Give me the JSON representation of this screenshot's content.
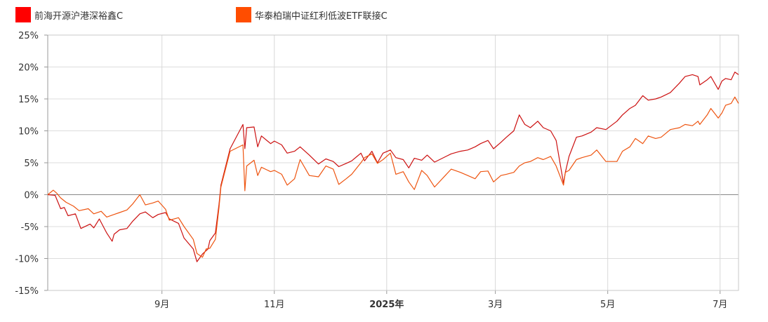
{
  "chart_data": {
    "type": "line",
    "ylim": [
      -15,
      25
    ],
    "y_ticks": [
      25,
      20,
      15,
      10,
      5,
      0,
      -5,
      -10,
      -15
    ],
    "y_tick_suffix": "%",
    "x_range": [
      "2024-07-01",
      "2025-07-11"
    ],
    "x_ticks": [
      {
        "date": "2024-09-01",
        "label": "9月",
        "bold": false
      },
      {
        "date": "2024-11-01",
        "label": "11月",
        "bold": false
      },
      {
        "date": "2025-01-01",
        "label": "2025年",
        "bold": true
      },
      {
        "date": "2025-03-01",
        "label": "3月",
        "bold": false
      },
      {
        "date": "2025-05-01",
        "label": "5月",
        "bold": false
      },
      {
        "date": "2025-07-01",
        "label": "7月",
        "bold": false
      }
    ],
    "grid": true,
    "legend_position": "top-left",
    "series": [
      {
        "name": "前海开源沪港深裕鑫C",
        "color": "#cc1111",
        "points": [
          [
            "2024-07-01",
            0
          ],
          [
            "2024-07-05",
            -0.1
          ],
          [
            "2024-07-08",
            -2.2
          ],
          [
            "2024-07-10",
            -2.0
          ],
          [
            "2024-07-12",
            -3.3
          ],
          [
            "2024-07-16",
            -3.0
          ],
          [
            "2024-07-19",
            -5.3
          ],
          [
            "2024-07-24",
            -4.6
          ],
          [
            "2024-07-26",
            -5.2
          ],
          [
            "2024-07-29",
            -3.8
          ],
          [
            "2024-08-02",
            -6.0
          ],
          [
            "2024-08-05",
            -7.3
          ],
          [
            "2024-08-06",
            -6.2
          ],
          [
            "2024-08-09",
            -5.5
          ],
          [
            "2024-08-13",
            -5.3
          ],
          [
            "2024-08-16",
            -4.2
          ],
          [
            "2024-08-20",
            -3.0
          ],
          [
            "2024-08-23",
            -2.7
          ],
          [
            "2024-08-27",
            -3.6
          ],
          [
            "2024-08-30",
            -3.1
          ],
          [
            "2024-09-03",
            -2.8
          ],
          [
            "2024-09-05",
            -3.8
          ],
          [
            "2024-09-10",
            -4.5
          ],
          [
            "2024-09-13",
            -6.8
          ],
          [
            "2024-09-18",
            -8.5
          ],
          [
            "2024-09-20",
            -10.5
          ],
          [
            "2024-09-23",
            -9.3
          ],
          [
            "2024-09-26",
            -8.5
          ],
          [
            "2024-09-27",
            -7.2
          ],
          [
            "2024-09-30",
            -6.0
          ],
          [
            "2024-10-02",
            -1.5
          ],
          [
            "2024-10-03",
            1.5
          ],
          [
            "2024-10-08",
            7.2
          ],
          [
            "2024-10-15",
            11.0
          ],
          [
            "2024-10-16",
            7.2
          ],
          [
            "2024-10-17",
            10.5
          ],
          [
            "2024-10-21",
            10.6
          ],
          [
            "2024-10-23",
            7.5
          ],
          [
            "2024-10-25",
            9.2
          ],
          [
            "2024-10-30",
            8.0
          ],
          [
            "2024-11-01",
            8.4
          ],
          [
            "2024-11-05",
            7.8
          ],
          [
            "2024-11-08",
            6.5
          ],
          [
            "2024-11-12",
            6.8
          ],
          [
            "2024-11-15",
            7.5
          ],
          [
            "2024-11-20",
            6.2
          ],
          [
            "2024-11-25",
            4.8
          ],
          [
            "2024-11-29",
            5.6
          ],
          [
            "2024-12-03",
            5.2
          ],
          [
            "2024-12-06",
            4.4
          ],
          [
            "2024-12-10",
            4.9
          ],
          [
            "2024-12-13",
            5.3
          ],
          [
            "2024-12-18",
            6.5
          ],
          [
            "2024-12-20",
            5.3
          ],
          [
            "2024-12-24",
            6.8
          ],
          [
            "2024-12-27",
            5.0
          ],
          [
            "2024-12-30",
            6.5
          ],
          [
            "2025-01-03",
            7.0
          ],
          [
            "2025-01-06",
            5.8
          ],
          [
            "2025-01-10",
            5.5
          ],
          [
            "2025-01-13",
            4.2
          ],
          [
            "2025-01-16",
            5.7
          ],
          [
            "2025-01-20",
            5.4
          ],
          [
            "2025-01-23",
            6.2
          ],
          [
            "2025-01-27",
            5.1
          ],
          [
            "2025-02-05",
            6.4
          ],
          [
            "2025-02-10",
            6.8
          ],
          [
            "2025-02-14",
            7.0
          ],
          [
            "2025-02-18",
            7.5
          ],
          [
            "2025-02-21",
            8.0
          ],
          [
            "2025-02-25",
            8.5
          ],
          [
            "2025-02-28",
            7.2
          ],
          [
            "2025-03-04",
            8.2
          ],
          [
            "2025-03-07",
            9.0
          ],
          [
            "2025-03-11",
            10.0
          ],
          [
            "2025-03-14",
            12.5
          ],
          [
            "2025-03-17",
            11.0
          ],
          [
            "2025-03-20",
            10.5
          ],
          [
            "2025-03-24",
            11.5
          ],
          [
            "2025-03-27",
            10.5
          ],
          [
            "2025-03-31",
            10.0
          ],
          [
            "2025-04-03",
            8.5
          ],
          [
            "2025-04-07",
            1.8
          ],
          [
            "2025-04-08",
            3.5
          ],
          [
            "2025-04-10",
            6.0
          ],
          [
            "2025-04-14",
            9.0
          ],
          [
            "2025-04-17",
            9.2
          ],
          [
            "2025-04-22",
            9.8
          ],
          [
            "2025-04-25",
            10.5
          ],
          [
            "2025-04-30",
            10.2
          ],
          [
            "2025-05-06",
            11.5
          ],
          [
            "2025-05-09",
            12.5
          ],
          [
            "2025-05-13",
            13.5
          ],
          [
            "2025-05-16",
            14.0
          ],
          [
            "2025-05-20",
            15.5
          ],
          [
            "2025-05-23",
            14.8
          ],
          [
            "2025-05-27",
            15.0
          ],
          [
            "2025-05-30",
            15.3
          ],
          [
            "2025-06-04",
            16.0
          ],
          [
            "2025-06-09",
            17.5
          ],
          [
            "2025-06-12",
            18.5
          ],
          [
            "2025-06-16",
            18.8
          ],
          [
            "2025-06-19",
            18.5
          ],
          [
            "2025-06-20",
            17.2
          ],
          [
            "2025-06-24",
            18.0
          ],
          [
            "2025-06-26",
            18.5
          ],
          [
            "2025-06-30",
            16.5
          ],
          [
            "2025-07-02",
            17.8
          ],
          [
            "2025-07-04",
            18.2
          ],
          [
            "2025-07-07",
            18.0
          ],
          [
            "2025-07-09",
            19.2
          ],
          [
            "2025-07-11",
            18.8
          ]
        ]
      },
      {
        "name": "华泰柏瑞中证红利低波ETF联接C",
        "color": "#ee5511",
        "points": [
          [
            "2024-07-01",
            0
          ],
          [
            "2024-07-04",
            0.7
          ],
          [
            "2024-07-06",
            0.2
          ],
          [
            "2024-07-08",
            -0.5
          ],
          [
            "2024-07-11",
            -1.2
          ],
          [
            "2024-07-15",
            -1.8
          ],
          [
            "2024-07-18",
            -2.5
          ],
          [
            "2024-07-23",
            -2.2
          ],
          [
            "2024-07-26",
            -3.0
          ],
          [
            "2024-07-30",
            -2.6
          ],
          [
            "2024-08-02",
            -3.5
          ],
          [
            "2024-08-06",
            -3.1
          ],
          [
            "2024-08-09",
            -2.8
          ],
          [
            "2024-08-13",
            -2.4
          ],
          [
            "2024-08-16",
            -1.5
          ],
          [
            "2024-08-20",
            0.0
          ],
          [
            "2024-08-23",
            -1.6
          ],
          [
            "2024-08-27",
            -1.3
          ],
          [
            "2024-08-30",
            -1.0
          ],
          [
            "2024-09-03",
            -2.3
          ],
          [
            "2024-09-05",
            -4.0
          ],
          [
            "2024-09-10",
            -3.6
          ],
          [
            "2024-09-13",
            -5.0
          ],
          [
            "2024-09-18",
            -7.0
          ],
          [
            "2024-09-20",
            -9.2
          ],
          [
            "2024-09-23",
            -9.8
          ],
          [
            "2024-09-25",
            -8.5
          ],
          [
            "2024-09-27",
            -8.4
          ],
          [
            "2024-09-30",
            -7.0
          ],
          [
            "2024-10-02",
            -2.0
          ],
          [
            "2024-10-03",
            1.2
          ],
          [
            "2024-10-08",
            6.8
          ],
          [
            "2024-10-15",
            7.8
          ],
          [
            "2024-10-16",
            0.6
          ],
          [
            "2024-10-17",
            4.5
          ],
          [
            "2024-10-21",
            5.4
          ],
          [
            "2024-10-23",
            3.0
          ],
          [
            "2024-10-25",
            4.3
          ],
          [
            "2024-10-30",
            3.6
          ],
          [
            "2024-11-01",
            3.8
          ],
          [
            "2024-11-05",
            3.2
          ],
          [
            "2024-11-08",
            1.5
          ],
          [
            "2024-11-12",
            2.5
          ],
          [
            "2024-11-15",
            5.5
          ],
          [
            "2024-11-20",
            3.0
          ],
          [
            "2024-11-25",
            2.8
          ],
          [
            "2024-11-29",
            4.5
          ],
          [
            "2024-12-03",
            4.0
          ],
          [
            "2024-12-06",
            1.6
          ],
          [
            "2024-12-10",
            2.5
          ],
          [
            "2024-12-13",
            3.2
          ],
          [
            "2024-12-18",
            5.0
          ],
          [
            "2024-12-20",
            5.8
          ],
          [
            "2024-12-24",
            6.4
          ],
          [
            "2024-12-27",
            4.9
          ],
          [
            "2024-12-30",
            5.5
          ],
          [
            "2025-01-03",
            6.5
          ],
          [
            "2025-01-06",
            3.2
          ],
          [
            "2025-01-10",
            3.6
          ],
          [
            "2025-01-13",
            2.0
          ],
          [
            "2025-01-16",
            0.8
          ],
          [
            "2025-01-20",
            3.8
          ],
          [
            "2025-01-23",
            3.0
          ],
          [
            "2025-01-27",
            1.2
          ],
          [
            "2025-02-05",
            4.0
          ],
          [
            "2025-02-10",
            3.5
          ],
          [
            "2025-02-14",
            3.0
          ],
          [
            "2025-02-18",
            2.5
          ],
          [
            "2025-02-21",
            3.6
          ],
          [
            "2025-02-25",
            3.7
          ],
          [
            "2025-02-28",
            2.0
          ],
          [
            "2025-03-04",
            3.0
          ],
          [
            "2025-03-07",
            3.2
          ],
          [
            "2025-03-11",
            3.5
          ],
          [
            "2025-03-14",
            4.5
          ],
          [
            "2025-03-17",
            5.0
          ],
          [
            "2025-03-20",
            5.2
          ],
          [
            "2025-03-24",
            5.8
          ],
          [
            "2025-03-27",
            5.5
          ],
          [
            "2025-03-31",
            6.0
          ],
          [
            "2025-04-03",
            4.5
          ],
          [
            "2025-04-07",
            1.5
          ],
          [
            "2025-04-08",
            3.5
          ],
          [
            "2025-04-10",
            3.8
          ],
          [
            "2025-04-14",
            5.5
          ],
          [
            "2025-04-17",
            5.8
          ],
          [
            "2025-04-22",
            6.2
          ],
          [
            "2025-04-25",
            7.0
          ],
          [
            "2025-04-30",
            5.2
          ],
          [
            "2025-05-06",
            5.2
          ],
          [
            "2025-05-09",
            6.8
          ],
          [
            "2025-05-13",
            7.5
          ],
          [
            "2025-05-16",
            8.8
          ],
          [
            "2025-05-20",
            8.0
          ],
          [
            "2025-05-23",
            9.2
          ],
          [
            "2025-05-27",
            8.8
          ],
          [
            "2025-05-30",
            9.0
          ],
          [
            "2025-06-04",
            10.2
          ],
          [
            "2025-06-09",
            10.5
          ],
          [
            "2025-06-12",
            11.0
          ],
          [
            "2025-06-16",
            10.8
          ],
          [
            "2025-06-19",
            11.5
          ],
          [
            "2025-06-20",
            11.0
          ],
          [
            "2025-06-24",
            12.5
          ],
          [
            "2025-06-26",
            13.5
          ],
          [
            "2025-06-30",
            12.0
          ],
          [
            "2025-07-02",
            12.8
          ],
          [
            "2025-07-04",
            14.0
          ],
          [
            "2025-07-07",
            14.3
          ],
          [
            "2025-07-09",
            15.3
          ],
          [
            "2025-07-11",
            14.3
          ]
        ]
      }
    ]
  }
}
